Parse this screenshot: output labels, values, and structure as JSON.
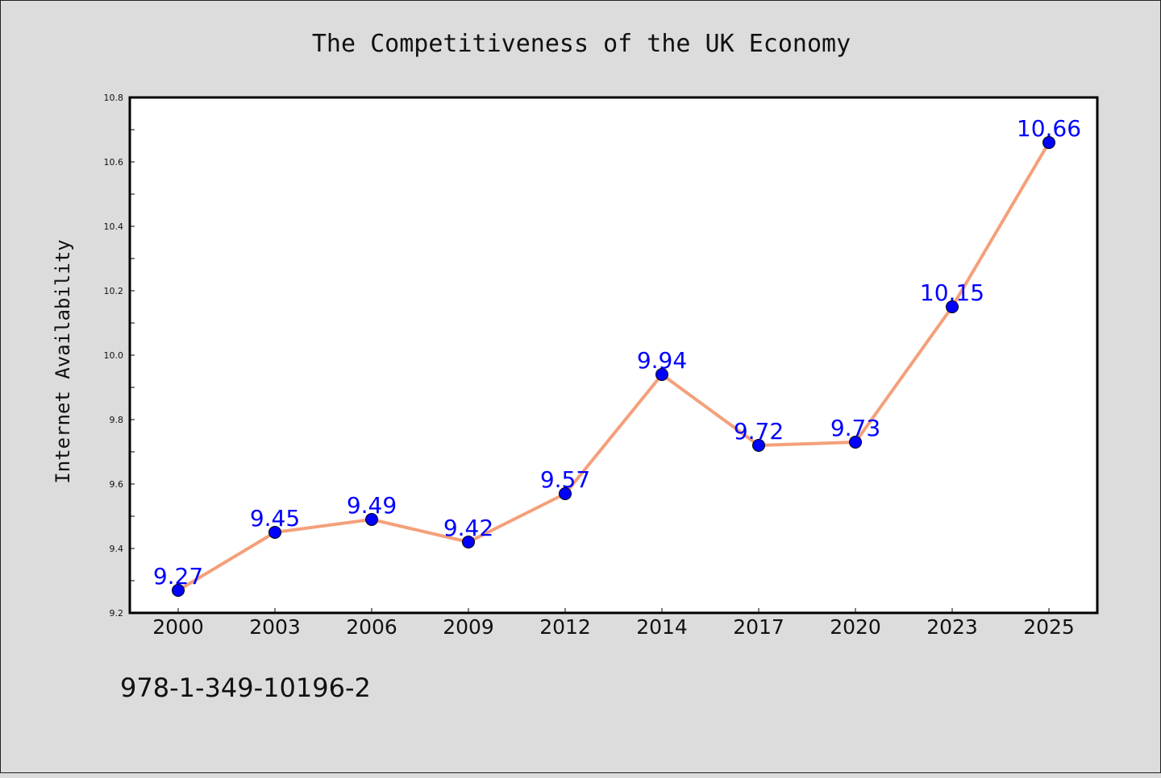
{
  "footer": {
    "code": "978-1-349-10196-2"
  },
  "colors": {
    "background": "#dcdcdc",
    "plot_background": "#ffffff",
    "line": "#f4a07a",
    "marker": "#0000ff",
    "data_label": "#0000ff"
  },
  "chart_data": {
    "type": "line",
    "title": "The Competitiveness of the UK Economy",
    "xlabel": "",
    "ylabel": "Internet Availability",
    "categories": [
      "2000",
      "2003",
      "2006",
      "2009",
      "2012",
      "2014",
      "2017",
      "2020",
      "2023",
      "2025"
    ],
    "series": [
      {
        "values": [
          9.27,
          9.45,
          9.49,
          9.42,
          9.57,
          9.94,
          9.72,
          9.73,
          10.15,
          10.66
        ]
      }
    ],
    "data_labels": [
      "9.27",
      "9.45",
      "9.49",
      "9.42",
      "9.57",
      "9.94",
      "9.72",
      "9.73",
      "10.15",
      "10.66"
    ],
    "ylim": [
      9.2,
      10.8
    ],
    "y_ticks": [
      "9.2",
      "9.4",
      "9.6",
      "9.8",
      "10.0",
      "10.2",
      "10.4",
      "10.6",
      "10.8"
    ],
    "grid": false,
    "legend": "none"
  }
}
